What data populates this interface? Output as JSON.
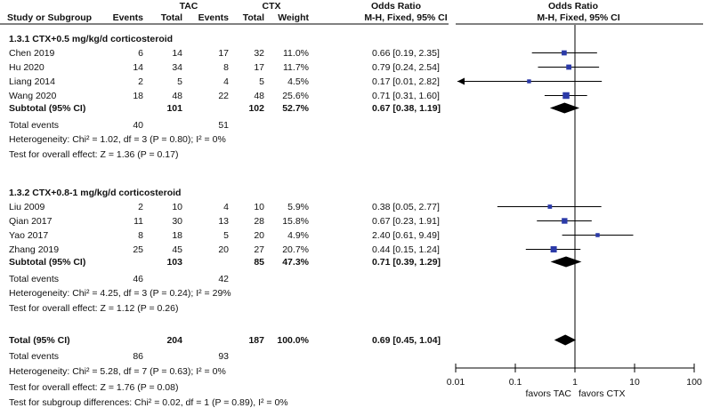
{
  "chart_data": {
    "type": "forest",
    "header": {
      "study": "Study or Subgroup",
      "tac": "TAC",
      "ctx": "CTX",
      "events": "Events",
      "total": "Total",
      "weight": "Weight",
      "or_top": "Odds Ratio",
      "or_sub": "M-H, Fixed, 95% CI",
      "plot_top": "Odds Ratio",
      "plot_sub": "M-H, Fixed, 95% CI"
    },
    "subgroups": [
      {
        "title": "1.3.1 CTX+0.5 mg/kg/d corticosteroid",
        "studies": [
          {
            "name": "Chen 2019",
            "tac_events": "6",
            "tac_total": "14",
            "ctx_events": "17",
            "ctx_total": "32",
            "weight": "11.0%",
            "ci_text": "0.66 [0.19, 2.35]",
            "or": 0.66,
            "lo": 0.19,
            "hi": 2.35,
            "w": 11.0
          },
          {
            "name": "Hu 2020",
            "tac_events": "14",
            "tac_total": "34",
            "ctx_events": "8",
            "ctx_total": "17",
            "weight": "11.7%",
            "ci_text": "0.79 [0.24, 2.54]",
            "or": 0.79,
            "lo": 0.24,
            "hi": 2.54,
            "w": 11.7
          },
          {
            "name": "Liang 2014",
            "tac_events": "2",
            "tac_total": "5",
            "ctx_events": "4",
            "ctx_total": "5",
            "weight": "4.5%",
            "ci_text": "0.17 [0.01, 2.82]",
            "or": 0.17,
            "lo": 0.01,
            "hi": 2.82,
            "w": 4.5
          },
          {
            "name": "Wang 2020",
            "tac_events": "18",
            "tac_total": "48",
            "ctx_events": "22",
            "ctx_total": "48",
            "weight": "25.6%",
            "ci_text": "0.71 [0.31, 1.60]",
            "or": 0.71,
            "lo": 0.31,
            "hi": 1.6,
            "w": 25.6
          }
        ],
        "subtotal": {
          "label": "Subtotal (95% CI)",
          "tac_total": "101",
          "ctx_total": "102",
          "weight": "52.7%",
          "ci_text": "0.67 [0.38, 1.19]",
          "or": 0.67,
          "lo": 0.38,
          "hi": 1.19
        },
        "total_events": {
          "label": "Total events",
          "tac": "40",
          "ctx": "51"
        },
        "heterogeneity": "Heterogeneity: Chi² = 1.02, df = 3 (P = 0.80); I² = 0%",
        "overall": "Test for overall effect: Z = 1.36 (P = 0.17)"
      },
      {
        "title": "1.3.2 CTX+0.8-1 mg/kg/d corticosteroid",
        "studies": [
          {
            "name": "Liu 2009",
            "tac_events": "2",
            "tac_total": "10",
            "ctx_events": "4",
            "ctx_total": "10",
            "weight": "5.9%",
            "ci_text": "0.38 [0.05, 2.77]",
            "or": 0.38,
            "lo": 0.05,
            "hi": 2.77,
            "w": 5.9
          },
          {
            "name": "Qian 2017",
            "tac_events": "11",
            "tac_total": "30",
            "ctx_events": "13",
            "ctx_total": "28",
            "weight": "15.8%",
            "ci_text": "0.67 [0.23, 1.91]",
            "or": 0.67,
            "lo": 0.23,
            "hi": 1.91,
            "w": 15.8
          },
          {
            "name": "Yao 2017",
            "tac_events": "8",
            "tac_total": "18",
            "ctx_events": "5",
            "ctx_total": "20",
            "weight": "4.9%",
            "ci_text": "2.40 [0.61, 9.49]",
            "or": 2.4,
            "lo": 0.61,
            "hi": 9.49,
            "w": 4.9
          },
          {
            "name": "Zhang 2019",
            "tac_events": "25",
            "tac_total": "45",
            "ctx_events": "20",
            "ctx_total": "27",
            "weight": "20.7%",
            "ci_text": "0.44 [0.15, 1.24]",
            "or": 0.44,
            "lo": 0.15,
            "hi": 1.24,
            "w": 20.7
          }
        ],
        "subtotal": {
          "label": "Subtotal (95% CI)",
          "tac_total": "103",
          "ctx_total": "85",
          "weight": "47.3%",
          "ci_text": "0.71 [0.39, 1.29]",
          "or": 0.71,
          "lo": 0.39,
          "hi": 1.29
        },
        "total_events": {
          "label": "Total events",
          "tac": "46",
          "ctx": "42"
        },
        "heterogeneity": "Heterogeneity: Chi² = 4.25, df = 3 (P = 0.24); I² = 29%",
        "overall": "Test for overall effect: Z = 1.12 (P = 0.26)"
      }
    ],
    "total": {
      "label": "Total (95% CI)",
      "tac_total": "204",
      "ctx_total": "187",
      "weight": "100.0%",
      "ci_text": "0.69 [0.45, 1.04]",
      "or": 0.69,
      "lo": 0.45,
      "hi": 1.04
    },
    "total_events": {
      "label": "Total events",
      "tac": "86",
      "ctx": "93"
    },
    "heterogeneity": "Heterogeneity: Chi² = 5.28, df = 7 (P = 0.63); I² = 0%",
    "overall": "Test for overall effect: Z = 1.76 (P = 0.08)",
    "subgroup_diff": "Test for subgroup differences: Chi² = 0.02, df = 1 (P = 0.89), I² = 0%",
    "axis": {
      "scale": "log",
      "xlim": [
        0.01,
        100
      ],
      "ticks": [
        0.01,
        0.1,
        1,
        10,
        100
      ],
      "tick_labels": [
        "0.01",
        "0.1",
        "1",
        "10",
        "100"
      ],
      "favors_left": "favors TAC",
      "favors_right": "favors CTX"
    },
    "colors": {
      "study_marker": "#2b3aa8",
      "summary_diamond": "#000000",
      "line": "#000000"
    }
  }
}
